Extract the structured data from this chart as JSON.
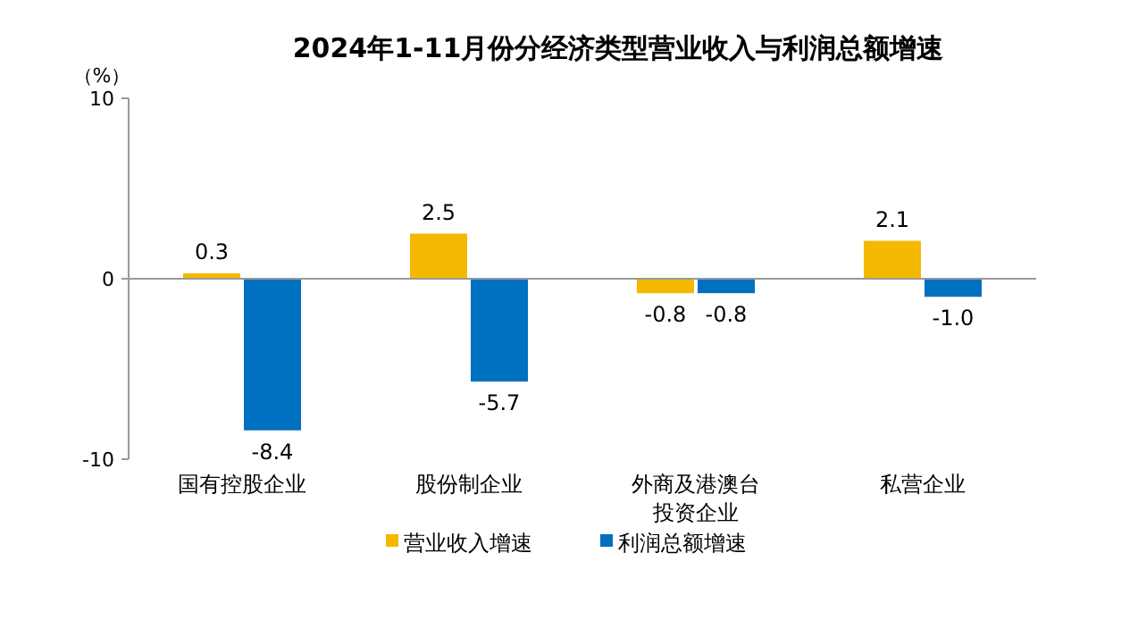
{
  "chart_data": {
    "type": "bar",
    "title": "2024年1-11月份分经济类型营业收入与利润总额增速",
    "ylabel": "（%）",
    "categories": [
      "国有控股企业",
      "股份制企业",
      "外商及港澳台投资企业",
      "私营企业"
    ],
    "series": [
      {
        "name": "营业收入增速",
        "color": "#f5b800",
        "values": [
          0.3,
          2.5,
          -0.8,
          2.1
        ],
        "value_labels": [
          "0.3",
          "2.5",
          "-0.8",
          "2.1"
        ]
      },
      {
        "name": "利润总额增速",
        "color": "#0070c0",
        "values": [
          -8.4,
          -5.7,
          -0.8,
          -1.0
        ],
        "value_labels": [
          "-8.4",
          "-5.7",
          "-0.8",
          "-1.0"
        ]
      }
    ],
    "ylim": [
      -10,
      10
    ],
    "yticks": [
      -10,
      0,
      10
    ],
    "legend": "bottom"
  }
}
